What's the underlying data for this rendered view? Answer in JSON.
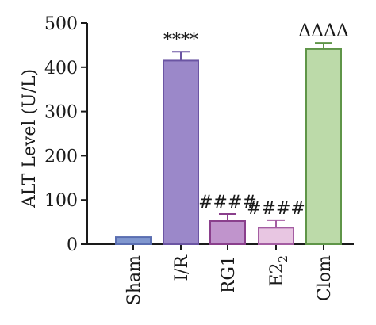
{
  "chart_data": {
    "type": "bar",
    "ylabel": "ALT Level (U/L)",
    "ylim": [
      0,
      500
    ],
    "yticks": [
      0,
      100,
      200,
      300,
      400,
      500
    ],
    "categories": [
      "Sham",
      "I/R",
      "RG1",
      "E2",
      "Clom"
    ],
    "category_subscripts": [
      "",
      "",
      "",
      "2",
      ""
    ],
    "values": [
      16,
      415,
      52,
      37,
      441
    ],
    "errors": [
      0,
      20,
      16,
      17,
      14
    ],
    "annotations": [
      "",
      "****",
      "####",
      "####",
      "ΔΔΔΔ"
    ],
    "colors": {
      "fill": [
        "#8097cf",
        "#9b88c9",
        "#c094cc",
        "#e8c6e2",
        "#bcdaa9"
      ],
      "stroke": [
        "#5a6eb1",
        "#6b55a3",
        "#8a3f8c",
        "#a45da2",
        "#5f9548"
      ]
    },
    "grid": false
  }
}
